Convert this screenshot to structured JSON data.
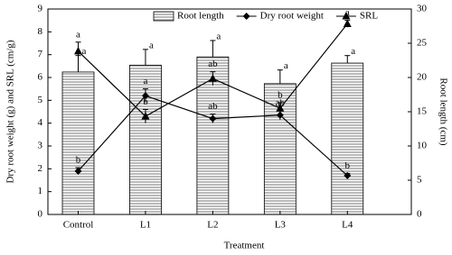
{
  "chart_data": {
    "type": "bar-line",
    "x_label": "Treatment",
    "y_label": "Dry root weight (g) and SRL (cm/g)",
    "y2_label": "Root length (cm)",
    "categories": [
      "Control",
      "L1",
      "L2",
      "L3",
      "L4"
    ],
    "ylim": [
      0,
      9
    ],
    "yticks": [
      0,
      1,
      2,
      3,
      4,
      5,
      6,
      7,
      8,
      9
    ],
    "y2lim": [
      0,
      30
    ],
    "y2ticks": [
      0,
      5,
      10,
      15,
      20,
      25,
      30
    ],
    "legend": "upper center",
    "series": [
      {
        "name": "Root length",
        "type": "bar",
        "axis": "y2",
        "color": "#8c8c8c",
        "values": [
          20.8,
          21.8,
          23.0,
          19.1,
          22.1
        ],
        "errors": [
          2.4,
          2.3,
          2.4,
          2.0,
          1.1
        ],
        "letters": [
          "a",
          "a",
          "a",
          "a",
          "a"
        ]
      },
      {
        "name": "Dry root weight",
        "type": "line",
        "marker": "diamond",
        "color": "#000000",
        "values": [
          1.9,
          5.2,
          4.2,
          4.35,
          1.7
        ],
        "errors": [
          0.15,
          0.3,
          0.2,
          0.2,
          0.1
        ],
        "letters": [
          "b",
          "a",
          "ab",
          "ab",
          "b"
        ]
      },
      {
        "name": "SRL",
        "type": "line",
        "marker": "triangle",
        "color": "#000000",
        "values": [
          7.15,
          4.3,
          5.95,
          4.65,
          8.35
        ],
        "errors": [
          0.4,
          0.3,
          0.3,
          0.25,
          0.15
        ],
        "letters": [
          "a",
          "b",
          "ab",
          "b",
          "a"
        ]
      }
    ]
  }
}
